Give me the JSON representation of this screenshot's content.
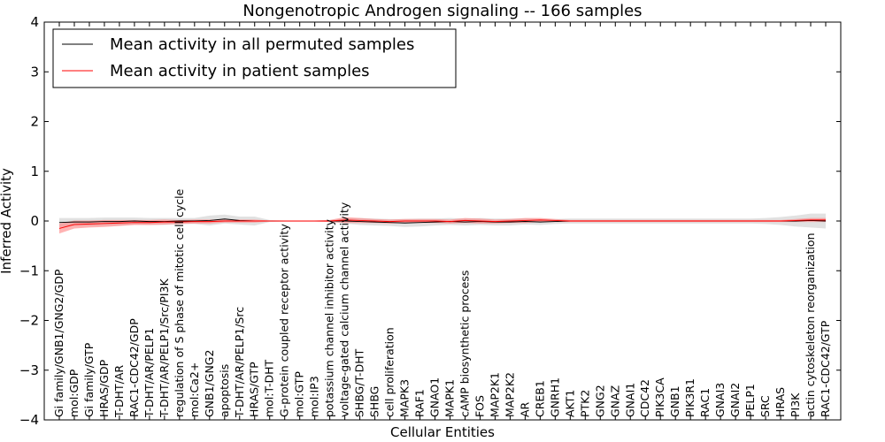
{
  "chart_data": {
    "type": "line",
    "title": "Nongenotropic Androgen signaling -- 166 samples",
    "xlabel": "Cellular Entities",
    "ylabel": "Inferred Activity",
    "ylim": [
      -4,
      4
    ],
    "yticks": [
      -4,
      -3,
      -2,
      -1,
      0,
      1,
      2,
      3,
      4
    ],
    "ytick_labels": [
      "−4",
      "−3",
      "−2",
      "−1",
      "0",
      "1",
      "2",
      "3",
      "4"
    ],
    "grid": false,
    "legend_position": "top-left",
    "categories": [
      "Gi family/GNB1/GNG2/GDP",
      "mol:GDP",
      "Gi family/GTP",
      "HRAS/GDP",
      "T-DHT/AR",
      "RAC1-CDC42/GDP",
      "T-DHT/AR/PELP1",
      "T-DHT/AR/PELP1/Src/PI3K",
      "regulation of S phase of mitotic cell cycle",
      "mol:Ca2+",
      "GNB1/GNG2",
      "apoptosis",
      "T-DHT/AR/PELP1/Src",
      "HRAS/GTP",
      "mol:T-DHT",
      "G-protein coupled receptor activity",
      "mol:GTP",
      "mol:IP3",
      "potassium channel inhibitor activity",
      "voltage-gated calcium channel activity",
      "SHBG/T-DHT",
      "SHBG",
      "cell proliferation",
      "MAPK3",
      "RAF1",
      "GNAO1",
      "MAPK1",
      "cAMP biosynthetic process",
      "FOS",
      "MAP2K1",
      "MAP2K2",
      "AR",
      "CREB1",
      "GNRH1",
      "AKT1",
      "PTK2",
      "GNG2",
      "GNAZ",
      "GNAI1",
      "CDC42",
      "PIK3CA",
      "GNB1",
      "PIK3R1",
      "RAC1",
      "GNAI3",
      "GNAI2",
      "PELP1",
      "SRC",
      "HRAS",
      "PI3K",
      "actin cytoskeleton reorganization",
      "RAC1-CDC42/GTP"
    ],
    "series": [
      {
        "name": "Mean activity in all permuted samples",
        "color": "#000000",
        "values": [
          -0.03,
          -0.02,
          -0.02,
          -0.01,
          -0.01,
          0.0,
          -0.01,
          -0.01,
          0.0,
          0.0,
          0.01,
          0.04,
          0.01,
          0.0,
          0.0,
          0.0,
          0.0,
          0.0,
          0.0,
          0.0,
          -0.01,
          -0.02,
          -0.03,
          -0.04,
          -0.03,
          -0.02,
          -0.01,
          -0.02,
          -0.01,
          -0.02,
          -0.02,
          -0.01,
          -0.02,
          -0.01,
          0.0,
          0.0,
          0.0,
          0.0,
          0.0,
          0.0,
          0.0,
          0.0,
          0.0,
          0.0,
          0.0,
          0.0,
          0.0,
          0.0,
          0.0,
          0.0,
          0.01,
          0.0
        ],
        "band": [
          0.09,
          0.08,
          0.08,
          0.08,
          0.08,
          0.07,
          0.07,
          0.07,
          0.06,
          0.06,
          0.1,
          0.09,
          0.08,
          0.09,
          0.02,
          0.01,
          0.01,
          0.01,
          0.02,
          0.05,
          0.07,
          0.07,
          0.07,
          0.08,
          0.08,
          0.07,
          0.07,
          0.07,
          0.07,
          0.07,
          0.07,
          0.06,
          0.06,
          0.05,
          0.05,
          0.05,
          0.05,
          0.05,
          0.05,
          0.05,
          0.05,
          0.05,
          0.05,
          0.05,
          0.05,
          0.05,
          0.05,
          0.06,
          0.08,
          0.11,
          0.14,
          0.15
        ]
      },
      {
        "name": "Mean activity in patient samples",
        "color": "#ff0000",
        "values": [
          -0.15,
          -0.07,
          -0.06,
          -0.05,
          -0.04,
          -0.03,
          -0.03,
          -0.02,
          -0.02,
          -0.01,
          -0.01,
          0.0,
          0.0,
          0.0,
          0.0,
          0.0,
          0.0,
          0.0,
          0.0,
          0.02,
          0.01,
          0.0,
          -0.01,
          0.0,
          0.0,
          0.0,
          -0.01,
          0.01,
          0.0,
          -0.01,
          0.0,
          0.01,
          0.02,
          0.01,
          0.0,
          0.0,
          0.0,
          0.0,
          0.0,
          0.0,
          0.0,
          0.0,
          0.0,
          0.0,
          0.0,
          0.0,
          0.0,
          0.0,
          0.0,
          0.01,
          0.02,
          0.02
        ],
        "band": [
          0.1,
          0.08,
          0.07,
          0.07,
          0.06,
          0.05,
          0.05,
          0.05,
          0.04,
          0.04,
          0.04,
          0.03,
          0.03,
          0.03,
          0.01,
          0.01,
          0.01,
          0.01,
          0.02,
          0.06,
          0.05,
          0.04,
          0.04,
          0.04,
          0.04,
          0.04,
          0.04,
          0.05,
          0.05,
          0.04,
          0.04,
          0.05,
          0.04,
          0.03,
          0.02,
          0.02,
          0.02,
          0.02,
          0.02,
          0.02,
          0.02,
          0.02,
          0.02,
          0.02,
          0.02,
          0.02,
          0.02,
          0.02,
          0.02,
          0.03,
          0.04,
          0.04
        ],
        "band_color": "#ff8080"
      }
    ]
  }
}
